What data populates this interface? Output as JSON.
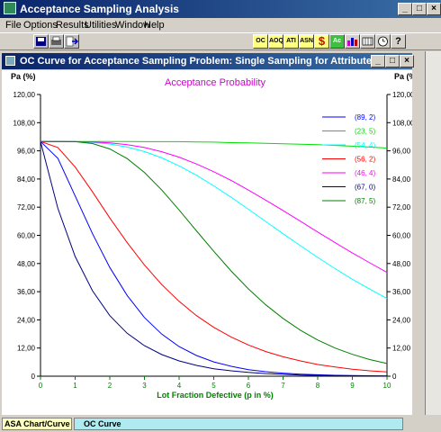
{
  "app": {
    "title": "Acceptance Sampling Analysis"
  },
  "menu": [
    "File",
    "Options",
    "Results",
    "Utilities",
    "Window",
    "Help"
  ],
  "toolbar_right_labels": [
    "OC",
    "AOQ",
    "ATI",
    "ASN",
    "$",
    "Ac Re"
  ],
  "child_window": {
    "title": "OC Curve for Acceptance Sampling Problem: Single Sampling for Attributes"
  },
  "status": {
    "left": "ASA Chart/Curve",
    "right": "OC Curve"
  },
  "colors": {
    "title_bar": "#0a246a",
    "plot_title": "#d000d0",
    "axis_label": "#008000"
  },
  "chart_data": {
    "type": "line",
    "title": "Acceptance Probability",
    "ylabel_left": "Pa (%)",
    "ylabel_right": "Pa (%)",
    "xlabel": "Lot Fraction Defective (p in %)",
    "xlim": [
      0,
      10
    ],
    "ylim": [
      0,
      120
    ],
    "x_ticks": [
      "0",
      "1",
      "2",
      "3",
      "4",
      "5",
      "6",
      "7",
      "8",
      "9",
      "10"
    ],
    "y_ticks": [
      "0",
      "12,00",
      "24,00",
      "36,00",
      "48,00",
      "60,00",
      "72,00",
      "84,00",
      "96,00",
      "108,00",
      "120,00"
    ],
    "legend_position": "top-right",
    "x": [
      0,
      0.5,
      1,
      1.5,
      2,
      2.5,
      3,
      3.5,
      4,
      4.5,
      5,
      5.5,
      6,
      6.5,
      7,
      7.5,
      8,
      8.5,
      9,
      9.5,
      10
    ],
    "series": [
      {
        "name": "(89, 2)",
        "color": "#0000ff",
        "values": [
          100,
          92.8,
          76.8,
          60.7,
          46.3,
          34.4,
          25.0,
          17.9,
          12.6,
          8.8,
          6.1,
          4.2,
          2.8,
          1.9,
          1.3,
          0.9,
          0.6,
          0.4,
          0.3,
          0.2,
          0.1
        ]
      },
      {
        "name": "(23, 5)",
        "color": "#00e000",
        "values": [
          100,
          100,
          100,
          100,
          100,
          100,
          99.9,
          99.9,
          99.9,
          99.8,
          99.7,
          99.5,
          99.4,
          99.2,
          99.0,
          98.8,
          98.6,
          98.3,
          98.0,
          97.6,
          97.2
        ]
      },
      {
        "name": "(54, 4)",
        "color": "#00ffff",
        "values": [
          100,
          100,
          99.9,
          99.6,
          98.9,
          97.6,
          95.7,
          93.0,
          89.6,
          85.6,
          81.1,
          76.2,
          71.1,
          65.9,
          60.7,
          55.6,
          50.6,
          45.8,
          41.3,
          37.1,
          33.1
        ]
      },
      {
        "name": "(56, 2)",
        "color": "#ff0000",
        "values": [
          100,
          97.4,
          89.1,
          78.5,
          67.4,
          56.9,
          47.4,
          39.0,
          31.9,
          25.8,
          20.8,
          16.7,
          13.3,
          10.5,
          8.3,
          6.5,
          5.0,
          3.9,
          3.0,
          2.3,
          1.8
        ]
      },
      {
        "name": "(46, 4)",
        "color": "#ff00ff",
        "values": [
          100,
          100,
          99.9,
          99.8,
          99.4,
          98.6,
          97.4,
          95.6,
          93.3,
          90.4,
          87.1,
          83.4,
          79.3,
          75.0,
          70.6,
          66.0,
          61.4,
          56.9,
          52.5,
          48.3,
          44.2
        ]
      },
      {
        "name": "(67, 0)",
        "color": "#000080",
        "values": [
          100,
          71.5,
          51.0,
          36.4,
          25.8,
          18.3,
          13.0,
          9.2,
          6.5,
          4.6,
          3.2,
          2.3,
          1.6,
          1.1,
          0.8,
          0.5,
          0.4,
          0.3,
          0.2,
          0.1,
          0.1
        ]
      },
      {
        "name": "(87, 5)",
        "color": "#008000",
        "values": [
          100,
          100,
          99.9,
          99.1,
          96.8,
          92.7,
          86.8,
          79.3,
          70.8,
          61.9,
          53.2,
          44.8,
          37.2,
          30.4,
          24.6,
          19.6,
          15.4,
          12.0,
          9.3,
          7.1,
          5.4
        ]
      }
    ]
  }
}
